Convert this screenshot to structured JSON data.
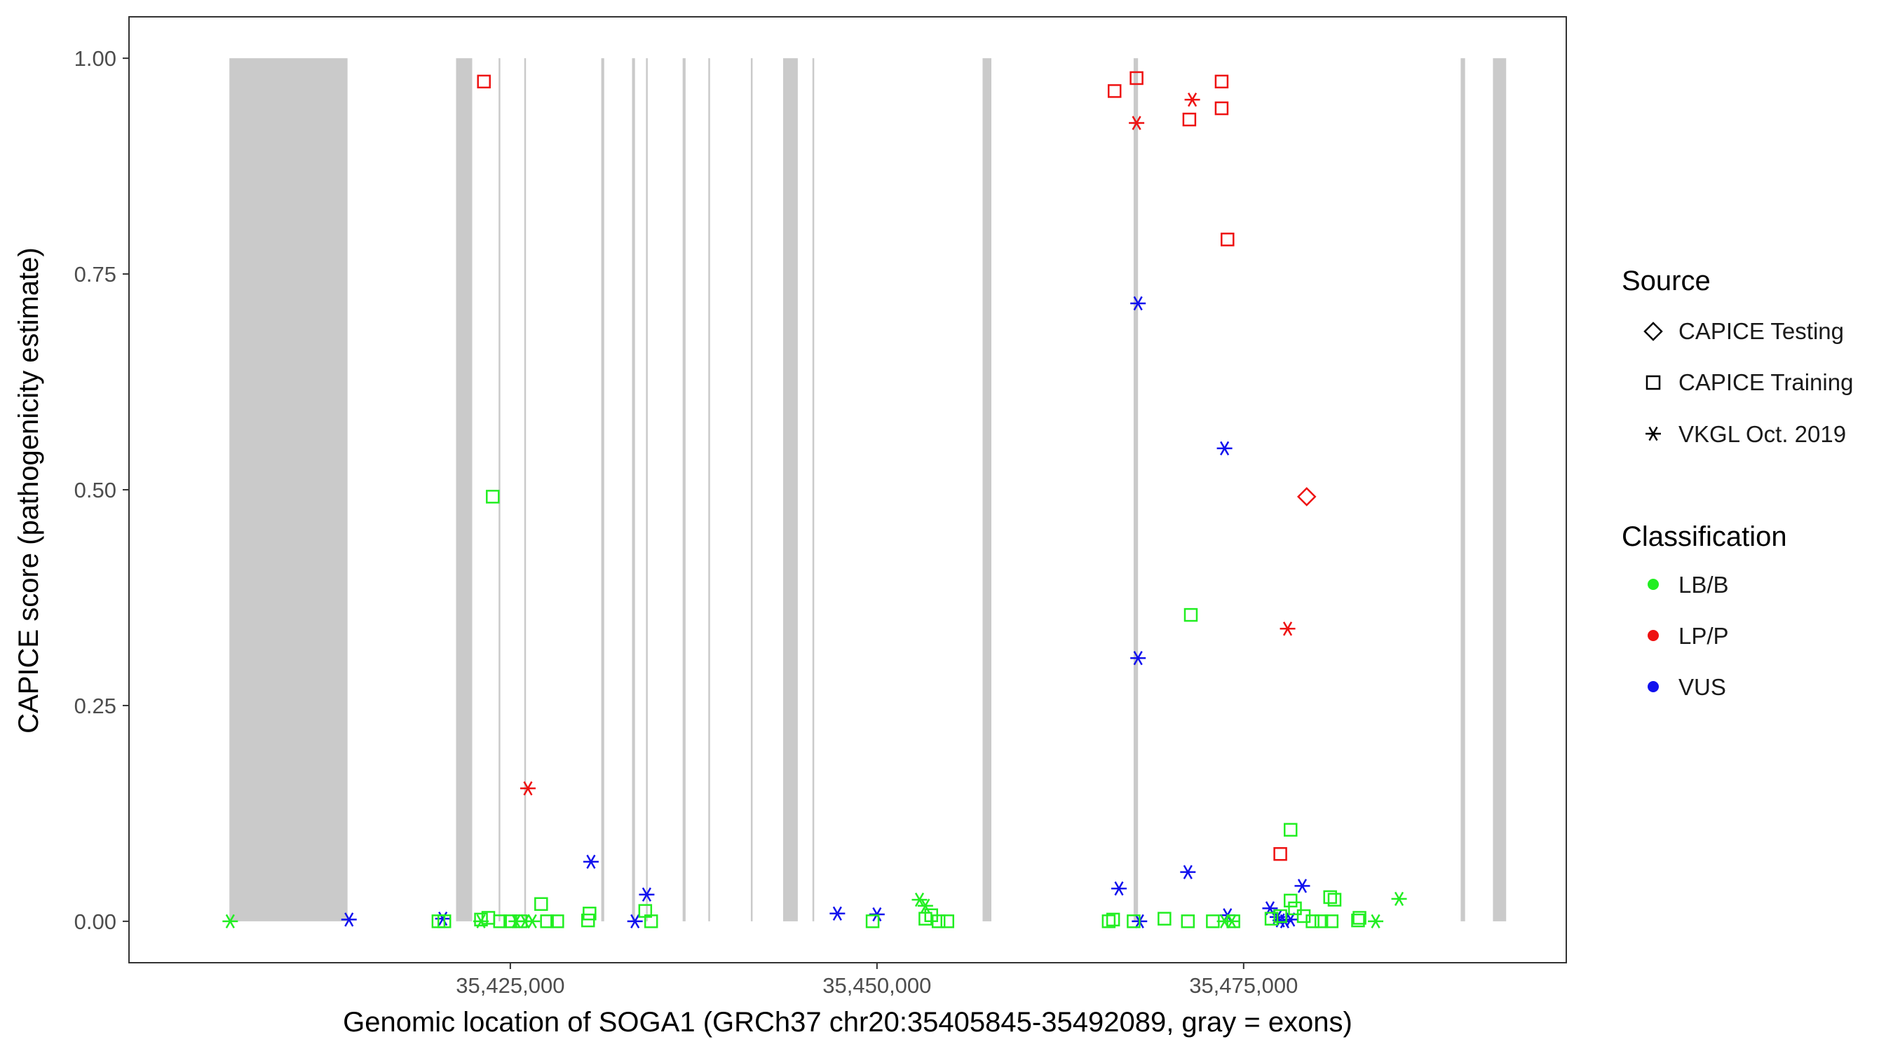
{
  "chart_data": {
    "type": "scatter",
    "xlabel": "Genomic location of SOGA1 (GRCh37 chr20:35405845-35492089, gray = exons)",
    "ylabel": "CAPICE score (pathogenicity estimate)",
    "xlim": [
      35399000,
      35497000
    ],
    "ylim": [
      -0.048,
      1.048
    ],
    "x_ticks": [
      35425000,
      35450000,
      35475000
    ],
    "x_tick_labels": [
      "35,425,000",
      "35,450,000",
      "35,475,000"
    ],
    "y_ticks": [
      0,
      0.25,
      0.5,
      0.75,
      1
    ],
    "y_tick_labels": [
      "0.00",
      "0.25",
      "0.50",
      "0.75",
      "1.00"
    ],
    "grid": false,
    "exons": [
      [
        35405845,
        35413900
      ],
      [
        35421300,
        35422400
      ],
      [
        35424200,
        35424300
      ],
      [
        35425950,
        35426050
      ],
      [
        35431200,
        35431400
      ],
      [
        35433300,
        35433500
      ],
      [
        35434250,
        35434350
      ],
      [
        35436750,
        35436950
      ],
      [
        35438500,
        35438600
      ],
      [
        35441400,
        35441500
      ],
      [
        35443600,
        35444600
      ],
      [
        35445600,
        35445700
      ],
      [
        35457200,
        35457800
      ],
      [
        35467500,
        35467800
      ],
      [
        35489800,
        35490100
      ],
      [
        35492000,
        35492900
      ]
    ],
    "colors": {
      "LB/B": "#22ee22",
      "LP/P": "#ee1111",
      "VUS": "#1111ee",
      "exon": "#cacaca"
    },
    "legend_position": "right",
    "legend": {
      "source_title": "Source",
      "source_items": [
        {
          "label": "CAPICE Testing",
          "shape": "diamond"
        },
        {
          "label": "CAPICE Training",
          "shape": "square"
        },
        {
          "label": "VKGL Oct. 2019",
          "shape": "asterisk"
        }
      ],
      "class_title": "Classification",
      "class_items": [
        {
          "label": "LB/B",
          "color": "#22ee22"
        },
        {
          "label": "LP/P",
          "color": "#ee1111"
        },
        {
          "label": "VUS",
          "color": "#1111ee"
        }
      ]
    },
    "series": [
      {
        "name": "LP/P",
        "source": "CAPICE Training",
        "shape": "square",
        "color": "#ee1111",
        "points": [
          [
            35423200,
            0.973
          ],
          [
            35466200,
            0.962
          ],
          [
            35467700,
            0.977
          ],
          [
            35471300,
            0.929
          ],
          [
            35473500,
            0.973
          ],
          [
            35473500,
            0.942
          ],
          [
            35473900,
            0.79
          ],
          [
            35477500,
            0.078
          ]
        ]
      },
      {
        "name": "LP/P",
        "source": "VKGL Oct. 2019",
        "shape": "asterisk",
        "color": "#ee1111",
        "points": [
          [
            35467700,
            0.925
          ],
          [
            35471500,
            0.952
          ],
          [
            35426200,
            0.154
          ],
          [
            35478000,
            0.339
          ]
        ]
      },
      {
        "name": "LP/P",
        "source": "CAPICE Testing",
        "shape": "diamond",
        "color": "#ee1111",
        "points": [
          [
            35479300,
            0.492
          ]
        ]
      },
      {
        "name": "VUS",
        "source": "VKGL Oct. 2019",
        "shape": "asterisk",
        "color": "#1111ee",
        "points": [
          [
            35414000,
            0.002
          ],
          [
            35420400,
            0.003
          ],
          [
            35430500,
            0.069
          ],
          [
            35433500,
            0.0
          ],
          [
            35434300,
            0.031
          ],
          [
            35447300,
            0.009
          ],
          [
            35450000,
            0.008
          ],
          [
            35466500,
            0.038
          ],
          [
            35467800,
            0.716
          ],
          [
            35467800,
            0.305
          ],
          [
            35467900,
            0.0
          ],
          [
            35471200,
            0.057
          ],
          [
            35473700,
            0.548
          ],
          [
            35473900,
            0.007
          ],
          [
            35476800,
            0.015
          ],
          [
            35477300,
            0.005
          ],
          [
            35477500,
            0.001
          ],
          [
            35477800,
            0.0
          ],
          [
            35478200,
            0.002
          ],
          [
            35479000,
            0.041
          ]
        ]
      },
      {
        "name": "LB/B",
        "source": "VKGL Oct. 2019",
        "shape": "asterisk",
        "color": "#22ee22",
        "points": [
          [
            35405900,
            0.0
          ],
          [
            35423000,
            0.0
          ],
          [
            35425400,
            0.0
          ],
          [
            35426000,
            0.0
          ],
          [
            35426500,
            0.0
          ],
          [
            35452900,
            0.025
          ],
          [
            35453300,
            0.018
          ],
          [
            35473700,
            0.0
          ],
          [
            35474200,
            0.0
          ],
          [
            35484000,
            0.0
          ],
          [
            35485600,
            0.026
          ]
        ]
      },
      {
        "name": "LB/B",
        "source": "CAPICE Training",
        "shape": "square",
        "color": "#22ee22",
        "points": [
          [
            35423800,
            0.492
          ],
          [
            35471400,
            0.355
          ],
          [
            35478200,
            0.106
          ],
          [
            35420100,
            0.0
          ],
          [
            35420500,
            0.0
          ],
          [
            35423000,
            0.002
          ],
          [
            35423500,
            0.004
          ],
          [
            35424300,
            0.0
          ],
          [
            35425000,
            0.0
          ],
          [
            35425700,
            0.0
          ],
          [
            35427100,
            0.02
          ],
          [
            35427500,
            0.0
          ],
          [
            35428200,
            0.0
          ],
          [
            35430300,
            0.001
          ],
          [
            35430400,
            0.009
          ],
          [
            35434200,
            0.012
          ],
          [
            35434600,
            0.0
          ],
          [
            35449700,
            0.0
          ],
          [
            35453300,
            0.003
          ],
          [
            35453700,
            0.007
          ],
          [
            35454200,
            0.0
          ],
          [
            35454800,
            0.0
          ],
          [
            35465800,
            0.0
          ],
          [
            35466100,
            0.002
          ],
          [
            35467500,
            0.0
          ],
          [
            35469600,
            0.003
          ],
          [
            35471200,
            0.0
          ],
          [
            35472900,
            0.0
          ],
          [
            35474300,
            0.0
          ],
          [
            35476900,
            0.003
          ],
          [
            35477500,
            0.006
          ],
          [
            35478200,
            0.024
          ],
          [
            35478500,
            0.015
          ],
          [
            35479100,
            0.006
          ],
          [
            35479700,
            0.0
          ],
          [
            35480300,
            0.0
          ],
          [
            35480900,
            0.028
          ],
          [
            35481200,
            0.025
          ],
          [
            35481000,
            0.0
          ],
          [
            35482800,
            0.001
          ],
          [
            35482900,
            0.004
          ]
        ]
      }
    ]
  }
}
